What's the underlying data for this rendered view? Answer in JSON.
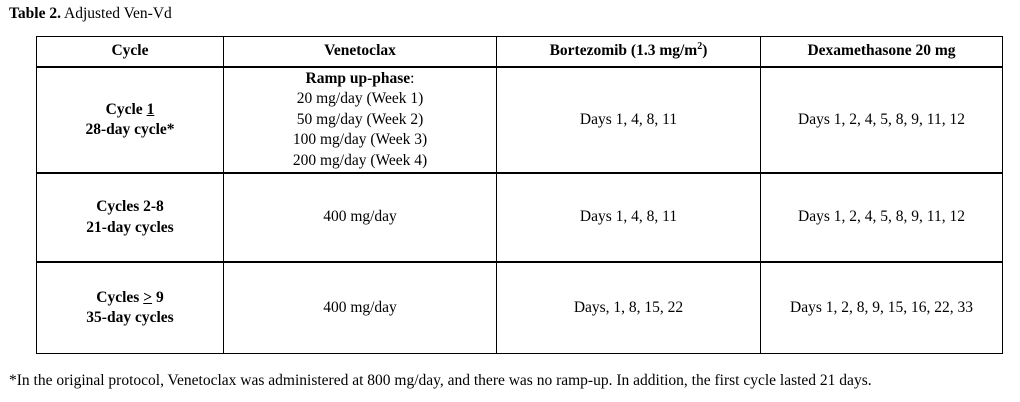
{
  "caption": {
    "label": "Table 2.",
    "title": "Adjusted Ven-Vd"
  },
  "table": {
    "headers": {
      "cycle": "Cycle",
      "venetoclax": "Venetoclax",
      "bortezomib_prefix": "Bortezomib (1.3 mg/m",
      "bortezomib_sup": "2",
      "bortezomib_suffix": ")",
      "dexamethasone": "Dexamethasone 20 mg"
    },
    "rows": [
      {
        "cycle_pre": "Cycle ",
        "cycle_num": "1",
        "cycle_line2": "28-day cycle*",
        "ven_heading": "Ramp up-phase",
        "ven_colon": ":",
        "ven_lines": [
          "20 mg/day (Week 1)",
          "50 mg/day (Week 2)",
          "100 mg/day (Week 3)",
          "200 mg/day (Week 4)"
        ],
        "bortezomib": "Days 1, 4, 8, 11",
        "dexamethasone": "Days 1, 2, 4, 5, 8, 9, 11, 12"
      },
      {
        "cycle_line1": "Cycles 2-8",
        "cycle_line2": "21-day cycles",
        "venetoclax": "400 mg/day",
        "bortezomib": "Days 1, 4, 8, 11",
        "dexamethasone": "Days 1, 2, 4, 5, 8, 9, 11, 12"
      },
      {
        "cycle_pre": "Cycles ",
        "cycle_sym": ">",
        "cycle_post": " 9",
        "cycle_line2": "35-day cycles",
        "venetoclax": "400 mg/day",
        "bortezomib": "Days, 1, 8, 15, 22",
        "dexamethasone": "Days 1, 2, 8, 9, 15, 16, 22, 33"
      }
    ]
  },
  "footnote": "*In the original protocol, Venetoclax was administered at 800 mg/day, and there was no ramp-up. In addition, the first cycle lasted 21 days."
}
